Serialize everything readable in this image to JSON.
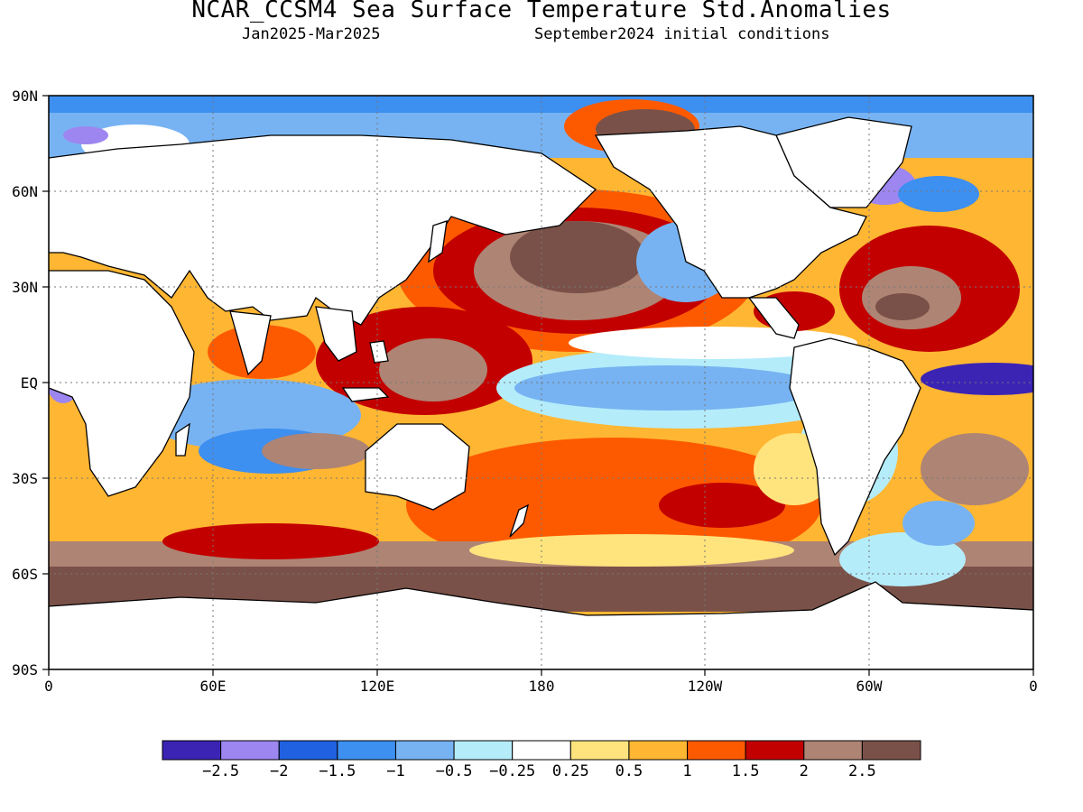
{
  "title": "NCAR_CCSM4 Sea Surface Temperature Std.Anomalies",
  "subtitle_left": "Jan2025-Mar2025",
  "subtitle_right": "September2024 initial conditions",
  "map": {
    "projection": "equirectangular",
    "lon_range": [
      0,
      360
    ],
    "lat_range": [
      -90,
      90
    ],
    "grid": "dotted",
    "lat_labels": [
      "90N",
      "60N",
      "30N",
      "EQ",
      "30S",
      "60S",
      "90S"
    ],
    "lon_labels": [
      "0",
      "60E",
      "120E",
      "180",
      "120W",
      "60W",
      "0"
    ],
    "land_color": "#ffffff"
  },
  "colorbar": {
    "colors": [
      "#3b24b4",
      "#9d86f0",
      "#1f61e0",
      "#3d8ff0",
      "#77b3f2",
      "#b4ecfa",
      "#ffffff",
      "#ffe47d",
      "#ffb632",
      "#fd5a00",
      "#c30000",
      "#ae8474",
      "#7a5148"
    ],
    "labels": [
      "−2.5",
      "−2",
      "−1.5",
      "−1",
      "−0.5",
      "−0.25",
      "0.25",
      "0.5",
      "1",
      "1.5",
      "2",
      "2.5"
    ]
  }
}
